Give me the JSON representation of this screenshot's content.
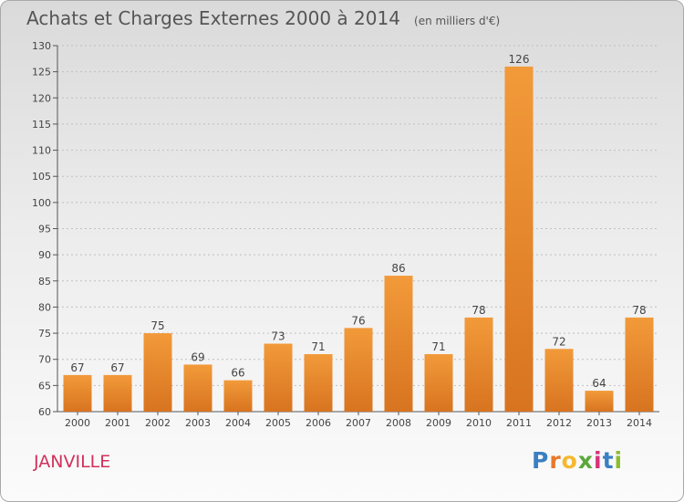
{
  "chart_data": {
    "type": "bar",
    "title": "Achats et Charges Externes 2000 à 2014",
    "unit_label": "(en milliers d'€)",
    "categories": [
      "2000",
      "2001",
      "2002",
      "2003",
      "2004",
      "2005",
      "2006",
      "2007",
      "2008",
      "2009",
      "2010",
      "2011",
      "2012",
      "2013",
      "2014"
    ],
    "values": [
      67,
      67,
      75,
      69,
      66,
      73,
      71,
      76,
      86,
      71,
      78,
      126,
      72,
      64,
      78
    ],
    "yticks": [
      60,
      65,
      70,
      75,
      80,
      85,
      90,
      95,
      100,
      105,
      110,
      115,
      120,
      125,
      130
    ],
    "ylim": [
      60,
      130
    ],
    "xlabel": "",
    "ylabel": "",
    "bar_color": "#f29a3a",
    "bar_color_dark": "#d87420"
  },
  "commune_name": "JANVILLE",
  "commune_color": "#d2315a",
  "logo": {
    "letters": [
      "P",
      "r",
      "o",
      "x",
      "i",
      "t",
      "i"
    ],
    "colors": [
      "#3a7fc3",
      "#e8792b",
      "#f5b82e",
      "#5aa839",
      "#d6337a",
      "#3a7fc3",
      "#8cbe2b"
    ]
  }
}
